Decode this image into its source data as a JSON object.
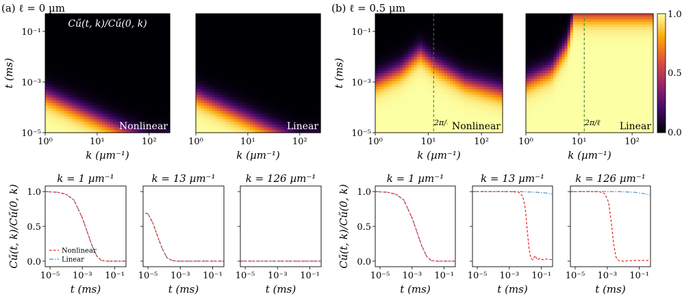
{
  "figure": {
    "panel_a_title": "(a) ℓ = 0 µm",
    "panel_b_title": "(b) ℓ = 0.5 µm",
    "heatmap_annotation": "Cű(t, k)/Cű(0, k)",
    "colorbar": {
      "ticks": [
        "0.0",
        "0.5",
        "1.0"
      ],
      "colormap": [
        "#000004",
        "#420a68",
        "#932667",
        "#dd513a",
        "#fca50a",
        "#fcffa4"
      ]
    },
    "wavelength_label": "2π/ℓ",
    "wavelength_line_color": "#2a8a2a"
  },
  "chart_data": [
    {
      "type": "heatmap",
      "panel": "a-nonlinear",
      "tag": "Nonlinear",
      "xlabel": "k (µm⁻¹)",
      "ylabel": "t (ms)",
      "x_scale": "log",
      "y_scale": "log",
      "xlim": [
        1,
        250
      ],
      "ylim": [
        1e-05,
        0.5
      ],
      "xticks": [
        "10⁰",
        "10¹",
        "10²"
      ],
      "yticks": [
        "10⁻⁵",
        "10⁻³",
        "10⁻¹"
      ],
      "decay_time_ms_at_k": {
        "1": 0.0003,
        "10": 3.5e-05,
        "100": 4e-06
      },
      "color_range": [
        0,
        1
      ]
    },
    {
      "type": "heatmap",
      "panel": "a-linear",
      "tag": "Linear",
      "xlabel": "k (µm⁻¹)",
      "ylabel": "",
      "x_scale": "log",
      "y_scale": "log",
      "xlim": [
        1,
        250
      ],
      "ylim": [
        1e-05,
        0.5
      ],
      "xticks": [
        "10⁰",
        "10¹",
        "10²"
      ],
      "yticks": [],
      "decay_time_ms_at_k": {
        "1": 0.0003,
        "10": 3.5e-05,
        "100": 4e-06
      },
      "color_range": [
        0,
        1
      ]
    },
    {
      "type": "heatmap",
      "panel": "b-nonlinear",
      "tag": "Nonlinear",
      "xlabel": "k (µm⁻¹)",
      "ylabel": "t (ms)",
      "x_scale": "log",
      "y_scale": "log",
      "xlim": [
        1,
        250
      ],
      "ylim": [
        1e-05,
        0.5
      ],
      "xticks": [
        "10⁰",
        "10¹",
        "10²"
      ],
      "yticks": [
        "10⁻⁵",
        "10⁻³",
        "10⁻¹"
      ],
      "decay_time_ms_at_k": {
        "1": 0.001,
        "3": 0.003,
        "7": 0.015,
        "13": 0.005,
        "50": 0.001,
        "250": 0.0004
      },
      "reference_line_k": 12.57,
      "color_range": [
        0,
        1
      ]
    },
    {
      "type": "heatmap",
      "panel": "b-linear",
      "tag": "Linear",
      "xlabel": "k (µm⁻¹)",
      "ylabel": "",
      "x_scale": "log",
      "y_scale": "log",
      "xlim": [
        1,
        250
      ],
      "ylim": [
        1e-05,
        0.5
      ],
      "xticks": [
        "10⁰",
        "10¹",
        "10²"
      ],
      "yticks": [],
      "decay_time_ms_at_k": {
        "1": 0.001,
        "3": 0.003,
        "6": 0.03,
        "8": 0.5
      },
      "reference_line_k": 12.57,
      "color_range": [
        0,
        1
      ]
    },
    {
      "type": "line",
      "panel": "a-k1",
      "title": "k = 1 µm⁻¹",
      "xlabel": "t (ms)",
      "ylabel": "Cű(t, k)/Cű(0, k)",
      "x_scale": "log",
      "xlim": [
        5e-06,
        0.5
      ],
      "ylim": [
        -0.08,
        1.08
      ],
      "xticks": [
        "10⁻⁵",
        "10⁻³",
        "10⁻¹"
      ],
      "yticks": [
        "0.0",
        "0.5",
        "1.0"
      ],
      "legend": "bottom-left",
      "series": [
        {
          "name": "Nonlinear",
          "color": "#e8211c",
          "style": "dashed",
          "points": [
            [
              5e-06,
              1.0
            ],
            [
              3e-05,
              0.99
            ],
            [
              0.0001,
              0.96
            ],
            [
              0.0003,
              0.88
            ],
            [
              0.001,
              0.62
            ],
            [
              0.002,
              0.42
            ],
            [
              0.004,
              0.22
            ],
            [
              0.008,
              0.07
            ],
            [
              0.015,
              0.01
            ],
            [
              0.03,
              0.0
            ],
            [
              0.1,
              0.0
            ],
            [
              0.5,
              0.0
            ]
          ]
        },
        {
          "name": "Linear",
          "color": "#4a90c8",
          "style": "dashdot",
          "points": [
            [
              5e-06,
              1.0
            ],
            [
              3e-05,
              0.99
            ],
            [
              0.0001,
              0.96
            ],
            [
              0.0003,
              0.88
            ],
            [
              0.001,
              0.62
            ],
            [
              0.002,
              0.42
            ],
            [
              0.004,
              0.22
            ],
            [
              0.008,
              0.07
            ],
            [
              0.015,
              0.01
            ],
            [
              0.03,
              0.0
            ],
            [
              0.1,
              0.0
            ],
            [
              0.5,
              0.0
            ]
          ]
        }
      ]
    },
    {
      "type": "line",
      "panel": "a-k13",
      "title": "k = 13 µm⁻¹",
      "xlabel": "t (ms)",
      "ylabel": "",
      "x_scale": "log",
      "xlim": [
        5e-06,
        0.5
      ],
      "ylim": [
        -0.08,
        1.08
      ],
      "xticks": [
        "10⁻⁵",
        "10⁻³",
        "10⁻¹"
      ],
      "yticks": [],
      "series": [
        {
          "name": "Nonlinear",
          "color": "#e8211c",
          "style": "dashed",
          "points": [
            [
              7e-06,
              0.69
            ],
            [
              1e-05,
              0.68
            ],
            [
              2e-05,
              0.55
            ],
            [
              4e-05,
              0.35
            ],
            [
              8e-05,
              0.17
            ],
            [
              0.00015,
              0.05
            ],
            [
              0.0003,
              0.01
            ],
            [
              0.0006,
              0.0
            ],
            [
              0.5,
              0.0
            ]
          ]
        },
        {
          "name": "Linear",
          "color": "#4a90c8",
          "style": "dashdot",
          "points": [
            [
              7e-06,
              0.69
            ],
            [
              1e-05,
              0.68
            ],
            [
              2e-05,
              0.55
            ],
            [
              4e-05,
              0.35
            ],
            [
              8e-05,
              0.17
            ],
            [
              0.00015,
              0.05
            ],
            [
              0.0003,
              0.01
            ],
            [
              0.0006,
              0.0
            ],
            [
              0.5,
              0.0
            ]
          ]
        }
      ]
    },
    {
      "type": "line",
      "panel": "a-k126",
      "title": "k = 126 µm⁻¹",
      "xlabel": "t (ms)",
      "ylabel": "",
      "x_scale": "log",
      "xlim": [
        5e-06,
        0.5
      ],
      "ylim": [
        -0.08,
        1.08
      ],
      "xticks": [
        "10⁻⁵",
        "10⁻³",
        "10⁻¹"
      ],
      "yticks": [],
      "series": [
        {
          "name": "Nonlinear",
          "color": "#e8211c",
          "style": "dashed",
          "points": [
            [
              5e-06,
              0.0
            ],
            [
              0.5,
              0.0
            ]
          ]
        },
        {
          "name": "Linear",
          "color": "#4a90c8",
          "style": "dashdot",
          "points": [
            [
              5e-06,
              0.0
            ],
            [
              0.5,
              0.0
            ]
          ]
        }
      ]
    },
    {
      "type": "line",
      "panel": "b-k1",
      "title": "k = 1 µm⁻¹",
      "xlabel": "t (ms)",
      "ylabel": "Cű(t, k)/Cű(0, k)",
      "x_scale": "log",
      "xlim": [
        5e-06,
        0.5
      ],
      "ylim": [
        -0.08,
        1.08
      ],
      "xticks": [
        "10⁻⁵",
        "10⁻³",
        "10⁻¹"
      ],
      "yticks": [
        "0.0",
        "0.5",
        "1.0"
      ],
      "series": [
        {
          "name": "Nonlinear",
          "color": "#e8211c",
          "style": "dashed",
          "points": [
            [
              5e-06,
              1.0
            ],
            [
              3e-05,
              0.99
            ],
            [
              0.0001,
              0.96
            ],
            [
              0.0003,
              0.88
            ],
            [
              0.001,
              0.62
            ],
            [
              0.002,
              0.42
            ],
            [
              0.004,
              0.22
            ],
            [
              0.008,
              0.07
            ],
            [
              0.015,
              0.01
            ],
            [
              0.03,
              0.0
            ],
            [
              0.1,
              0.0
            ],
            [
              0.5,
              0.0
            ]
          ]
        },
        {
          "name": "Linear",
          "color": "#4a90c8",
          "style": "dashdot",
          "points": [
            [
              5e-06,
              1.0
            ],
            [
              3e-05,
              0.99
            ],
            [
              0.0001,
              0.96
            ],
            [
              0.0003,
              0.88
            ],
            [
              0.001,
              0.62
            ],
            [
              0.002,
              0.42
            ],
            [
              0.004,
              0.22
            ],
            [
              0.008,
              0.07
            ],
            [
              0.015,
              0.01
            ],
            [
              0.03,
              0.0
            ],
            [
              0.1,
              0.0
            ],
            [
              0.5,
              0.0
            ]
          ]
        }
      ]
    },
    {
      "type": "line",
      "panel": "b-k13",
      "title": "k = 13 µm⁻¹",
      "xlabel": "t (ms)",
      "ylabel": "",
      "x_scale": "log",
      "xlim": [
        5e-06,
        0.5
      ],
      "ylim": [
        -0.08,
        1.08
      ],
      "xticks": [
        "10⁻⁵",
        "10⁻³",
        "10⁻¹"
      ],
      "yticks": [],
      "series": [
        {
          "name": "Nonlinear",
          "color": "#e8211c",
          "style": "dashed",
          "points": [
            [
              5e-06,
              1.0
            ],
            [
              0.001,
              1.0
            ],
            [
              0.004,
              0.99
            ],
            [
              0.007,
              0.93
            ],
            [
              0.01,
              0.75
            ],
            [
              0.013,
              0.45
            ],
            [
              0.017,
              0.18
            ],
            [
              0.022,
              0.04
            ],
            [
              0.03,
              0.02
            ],
            [
              0.04,
              0.08
            ],
            [
              0.055,
              0.02
            ],
            [
              0.08,
              0.04
            ],
            [
              0.12,
              0.02
            ],
            [
              0.2,
              0.03
            ],
            [
              0.5,
              0.02
            ]
          ]
        },
        {
          "name": "Linear",
          "color": "#4a90c8",
          "style": "dashdot",
          "points": [
            [
              5e-06,
              1.0
            ],
            [
              0.005,
              1.0
            ],
            [
              0.05,
              0.99
            ],
            [
              0.2,
              0.98
            ],
            [
              0.5,
              0.96
            ]
          ]
        }
      ]
    },
    {
      "type": "line",
      "panel": "b-k126",
      "title": "k = 126 µm⁻¹",
      "xlabel": "t (ms)",
      "ylabel": "",
      "x_scale": "log",
      "xlim": [
        5e-06,
        0.5
      ],
      "ylim": [
        -0.08,
        1.08
      ],
      "xticks": [
        "10⁻⁵",
        "10⁻³",
        "10⁻¹"
      ],
      "yticks": [],
      "series": [
        {
          "name": "Nonlinear",
          "color": "#e8211c",
          "style": "dashed",
          "points": [
            [
              5e-06,
              1.0
            ],
            [
              0.0003,
              1.0
            ],
            [
              0.0007,
              0.97
            ],
            [
              0.0012,
              0.85
            ],
            [
              0.0018,
              0.55
            ],
            [
              0.0025,
              0.25
            ],
            [
              0.0035,
              0.06
            ],
            [
              0.005,
              0.01
            ],
            [
              0.01,
              0.0
            ],
            [
              0.05,
              0.01
            ],
            [
              0.5,
              0.01
            ]
          ]
        },
        {
          "name": "Linear",
          "color": "#4a90c8",
          "style": "dashdot",
          "points": [
            [
              5e-06,
              1.0
            ],
            [
              0.005,
              1.0
            ],
            [
              0.05,
              0.99
            ],
            [
              0.2,
              0.97
            ],
            [
              0.5,
              0.95
            ]
          ]
        }
      ]
    }
  ]
}
